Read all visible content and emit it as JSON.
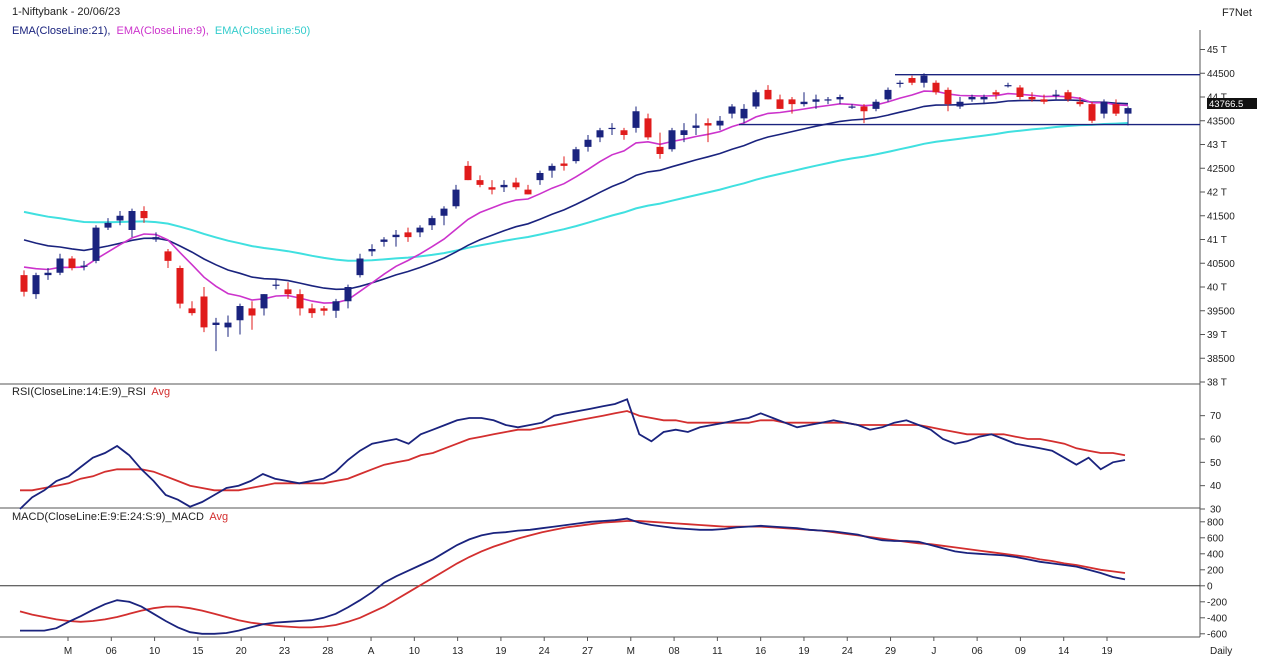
{
  "header": {
    "title": "1-Niftybank - 20/06/23",
    "brand": "F7Net",
    "ema_labels": [
      {
        "text": "EMA(CloseLine:21),",
        "color": "#1a237e"
      },
      {
        "text": "EMA(CloseLine:9),",
        "color": "#cc33cc"
      },
      {
        "text": "EMA(CloseLine:50)",
        "color": "#33cccc"
      }
    ],
    "last_price": "43766.5",
    "timeframe": "Daily"
  },
  "colors": {
    "bull": "#1a237e",
    "bear": "#e01b1b",
    "ema21": "#1a237e",
    "ema9": "#cc33cc",
    "ema50": "#40e0e0",
    "rsi": "#1a237e",
    "rsi_avg": "#d32f2f",
    "macd": "#1a237e",
    "macd_avg": "#d32f2f",
    "level": "#1a237e"
  },
  "chart_data": [
    {
      "type": "candlestick",
      "panel": "price",
      "y_ticks": [
        "45 T",
        "44500",
        "44 T",
        "43500",
        "43 T",
        "42500",
        "42 T",
        "41500",
        "41 T",
        "40500",
        "40 T",
        "39500",
        "39 T",
        "38500",
        "38 T"
      ],
      "ylim": [
        38000,
        45200
      ],
      "x_tick_labels": [
        "M",
        "06",
        "10",
        "15",
        "20",
        "23",
        "28",
        "A",
        "10",
        "13",
        "19",
        "24",
        "27",
        "M",
        "08",
        "11",
        "16",
        "19",
        "24",
        "29",
        "J",
        "06",
        "09",
        "14",
        "19"
      ],
      "candles": [
        [
          40250,
          40350,
          39800,
          39900
        ],
        [
          39850,
          40300,
          39750,
          40250
        ],
        [
          40250,
          40400,
          40150,
          40300
        ],
        [
          40300,
          40700,
          40250,
          40600
        ],
        [
          40600,
          40650,
          40350,
          40400
        ],
        [
          40450,
          40550,
          40350,
          40450
        ],
        [
          40550,
          41300,
          40500,
          41250
        ],
        [
          41250,
          41450,
          41200,
          41350
        ],
        [
          41400,
          41600,
          41300,
          41500
        ],
        [
          41200,
          41650,
          41050,
          41600
        ],
        [
          41600,
          41700,
          41350,
          41450
        ],
        [
          41000,
          41150,
          40950,
          41050
        ],
        [
          40750,
          40800,
          40400,
          40550
        ],
        [
          40400,
          40450,
          39550,
          39650
        ],
        [
          39550,
          39700,
          39400,
          39450
        ],
        [
          39800,
          40000,
          39050,
          39150
        ],
        [
          39200,
          39350,
          38650,
          39250
        ],
        [
          39150,
          39400,
          38950,
          39250
        ],
        [
          39300,
          39650,
          39000,
          39600
        ],
        [
          39550,
          39700,
          39100,
          39400
        ],
        [
          39550,
          39850,
          39400,
          39850
        ],
        [
          40050,
          40150,
          39950,
          40050
        ],
        [
          39950,
          40100,
          39750,
          39850
        ],
        [
          39850,
          39950,
          39400,
          39550
        ],
        [
          39550,
          39650,
          39350,
          39450
        ],
        [
          39550,
          39600,
          39400,
          39500
        ],
        [
          39500,
          39750,
          39350,
          39700
        ],
        [
          39700,
          40050,
          39550,
          40000
        ],
        [
          40250,
          40700,
          40200,
          40600
        ],
        [
          40750,
          40900,
          40650,
          40800
        ],
        [
          40950,
          41050,
          40850,
          41000
        ],
        [
          41050,
          41200,
          40850,
          41100
        ],
        [
          41150,
          41250,
          40950,
          41050
        ],
        [
          41150,
          41300,
          41050,
          41250
        ],
        [
          41300,
          41500,
          41200,
          41450
        ],
        [
          41500,
          41700,
          41300,
          41650
        ],
        [
          41700,
          42150,
          41650,
          42050
        ],
        [
          42550,
          42650,
          42250,
          42250
        ],
        [
          42250,
          42350,
          42100,
          42150
        ],
        [
          42100,
          42250,
          41950,
          42050
        ],
        [
          42100,
          42250,
          42000,
          42150
        ],
        [
          42200,
          42300,
          42050,
          42100
        ],
        [
          42050,
          42150,
          41950,
          41950
        ],
        [
          42250,
          42450,
          42150,
          42400
        ],
        [
          42450,
          42600,
          42300,
          42550
        ],
        [
          42600,
          42750,
          42450,
          42550
        ],
        [
          42650,
          42950,
          42600,
          42900
        ],
        [
          42950,
          43200,
          42850,
          43100
        ],
        [
          43150,
          43350,
          43050,
          43300
        ],
        [
          43350,
          43450,
          43200,
          43350
        ],
        [
          43300,
          43350,
          43100,
          43200
        ],
        [
          43350,
          43800,
          43250,
          43700
        ],
        [
          43550,
          43650,
          43100,
          43150
        ],
        [
          42950,
          43250,
          42700,
          42800
        ],
        [
          42900,
          43350,
          42850,
          43300
        ],
        [
          43200,
          43450,
          43050,
          43300
        ],
        [
          43350,
          43650,
          43200,
          43400
        ],
        [
          43450,
          43550,
          43050,
          43400
        ],
        [
          43400,
          43600,
          43300,
          43500
        ],
        [
          43650,
          43850,
          43550,
          43800
        ],
        [
          43550,
          43850,
          43450,
          43750
        ],
        [
          43800,
          44150,
          43750,
          44100
        ],
        [
          44150,
          44250,
          43950,
          43950
        ],
        [
          43950,
          44050,
          43750,
          43750
        ],
        [
          43950,
          44000,
          43650,
          43850
        ],
        [
          43850,
          44100,
          43800,
          43900
        ],
        [
          43900,
          44050,
          43750,
          43950
        ],
        [
          43950,
          44000,
          43850,
          43950
        ],
        [
          43950,
          44050,
          43850,
          44000
        ],
        [
          43800,
          43850,
          43750,
          43800
        ],
        [
          43800,
          43850,
          43450,
          43700
        ],
        [
          43750,
          43950,
          43700,
          43900
        ],
        [
          43950,
          44200,
          43900,
          44150
        ],
        [
          44300,
          44350,
          44200,
          44300
        ],
        [
          44400,
          44450,
          44250,
          44300
        ],
        [
          44300,
          44500,
          44200,
          44450
        ],
        [
          44300,
          44350,
          44050,
          44100
        ],
        [
          44150,
          44200,
          43700,
          43850
        ],
        [
          43800,
          44000,
          43750,
          43900
        ],
        [
          43950,
          44050,
          43900,
          44000
        ],
        [
          43950,
          44050,
          43850,
          44000
        ],
        [
          44100,
          44150,
          43950,
          44050
        ],
        [
          44250,
          44300,
          44200,
          44250
        ],
        [
          44200,
          44250,
          43950,
          44000
        ],
        [
          44000,
          44100,
          43900,
          43950
        ],
        [
          43950,
          44050,
          43850,
          43900
        ],
        [
          44050,
          44150,
          43950,
          44050
        ],
        [
          44100,
          44150,
          43900,
          43950
        ],
        [
          43900,
          44000,
          43800,
          43850
        ],
        [
          43850,
          43900,
          43450,
          43500
        ],
        [
          43650,
          43950,
          43550,
          43900
        ],
        [
          43850,
          43950,
          43600,
          43650
        ],
        [
          43650,
          43800,
          43400,
          43766.5
        ]
      ],
      "levels": [
        44470,
        43420
      ],
      "level_segments": [
        [
          73,
          95
        ],
        [
          60,
          95
        ]
      ]
    },
    {
      "type": "line",
      "panel": "rsi",
      "title": "RSI(CloseLine:14:E:9)_RSI",
      "avg_label": "Avg",
      "y_ticks": [
        "70",
        "60",
        "50",
        "40",
        "30"
      ],
      "ylim": [
        30,
        78
      ],
      "series": [
        {
          "name": "RSI",
          "values": [
            30,
            35,
            38,
            42,
            44,
            48,
            52,
            54,
            57,
            53,
            47,
            42,
            36,
            34,
            31,
            33,
            36,
            39,
            40,
            42,
            45,
            43,
            42,
            41,
            42,
            43,
            46,
            51,
            55,
            58,
            59,
            60,
            58,
            62,
            64,
            66,
            68,
            69,
            69,
            68,
            66,
            65,
            66,
            67,
            70,
            71,
            72,
            73,
            74,
            75,
            77,
            62,
            59,
            63,
            64,
            63,
            65,
            66,
            67,
            68,
            69,
            71,
            69,
            67,
            65,
            66,
            67,
            68,
            67,
            66,
            64,
            65,
            67,
            68,
            66,
            64,
            60,
            58,
            59,
            61,
            62,
            60,
            58,
            57,
            56,
            55,
            52,
            49,
            52,
            47,
            50,
            51
          ]
        },
        {
          "name": "Avg",
          "values": [
            38,
            38,
            39,
            40,
            41,
            43,
            44,
            46,
            47,
            47,
            47,
            46,
            44,
            42,
            40,
            39,
            38,
            38,
            38,
            39,
            40,
            41,
            41,
            41,
            41,
            41,
            42,
            43,
            45,
            47,
            49,
            50,
            51,
            53,
            54,
            56,
            58,
            60,
            61,
            62,
            63,
            64,
            64,
            65,
            66,
            67,
            68,
            69,
            70,
            71,
            72,
            70,
            69,
            68,
            68,
            67,
            67,
            67,
            67,
            67,
            67,
            68,
            68,
            67,
            67,
            67,
            67,
            67,
            67,
            66,
            66,
            66,
            66,
            66,
            66,
            65,
            64,
            63,
            62,
            62,
            62,
            62,
            61,
            60,
            60,
            59,
            58,
            56,
            55,
            54,
            54,
            53
          ]
        }
      ]
    },
    {
      "type": "line",
      "panel": "macd",
      "title": "MACD(CloseLine:E:9:E:24:S:9)_MACD",
      "avg_label": "Avg",
      "y_ticks": [
        "800",
        "600",
        "400",
        "200",
        "0",
        "-200",
        "-400",
        "-600"
      ],
      "ylim": [
        -640,
        860
      ],
      "series": [
        {
          "name": "MACD",
          "values": [
            -560,
            -560,
            -560,
            -530,
            -450,
            -380,
            -300,
            -230,
            -180,
            -200,
            -260,
            -350,
            -440,
            -520,
            -580,
            -600,
            -600,
            -590,
            -560,
            -520,
            -480,
            -460,
            -450,
            -440,
            -430,
            -400,
            -350,
            -270,
            -180,
            -80,
            40,
            120,
            190,
            260,
            330,
            420,
            510,
            580,
            630,
            660,
            670,
            690,
            700,
            720,
            740,
            760,
            780,
            800,
            810,
            820,
            840,
            790,
            760,
            740,
            720,
            710,
            700,
            700,
            710,
            730,
            740,
            750,
            740,
            730,
            720,
            700,
            690,
            680,
            660,
            640,
            600,
            570,
            560,
            560,
            550,
            510,
            470,
            430,
            410,
            400,
            390,
            380,
            360,
            330,
            300,
            280,
            260,
            240,
            200,
            160,
            110,
            80
          ]
        },
        {
          "name": "Avg",
          "values": [
            -320,
            -360,
            -390,
            -420,
            -440,
            -450,
            -440,
            -420,
            -390,
            -350,
            -310,
            -280,
            -260,
            -260,
            -280,
            -310,
            -350,
            -390,
            -430,
            -460,
            -480,
            -500,
            -510,
            -520,
            -520,
            -510,
            -490,
            -450,
            -400,
            -330,
            -260,
            -170,
            -80,
            10,
            100,
            190,
            280,
            360,
            430,
            490,
            540,
            590,
            630,
            670,
            700,
            730,
            750,
            770,
            790,
            800,
            810,
            810,
            800,
            790,
            780,
            770,
            760,
            750,
            740,
            740,
            740,
            740,
            730,
            720,
            710,
            700,
            690,
            670,
            650,
            630,
            610,
            590,
            570,
            550,
            530,
            520,
            500,
            480,
            460,
            440,
            420,
            400,
            380,
            360,
            330,
            310,
            280,
            260,
            230,
            200,
            180,
            160
          ]
        }
      ]
    }
  ]
}
